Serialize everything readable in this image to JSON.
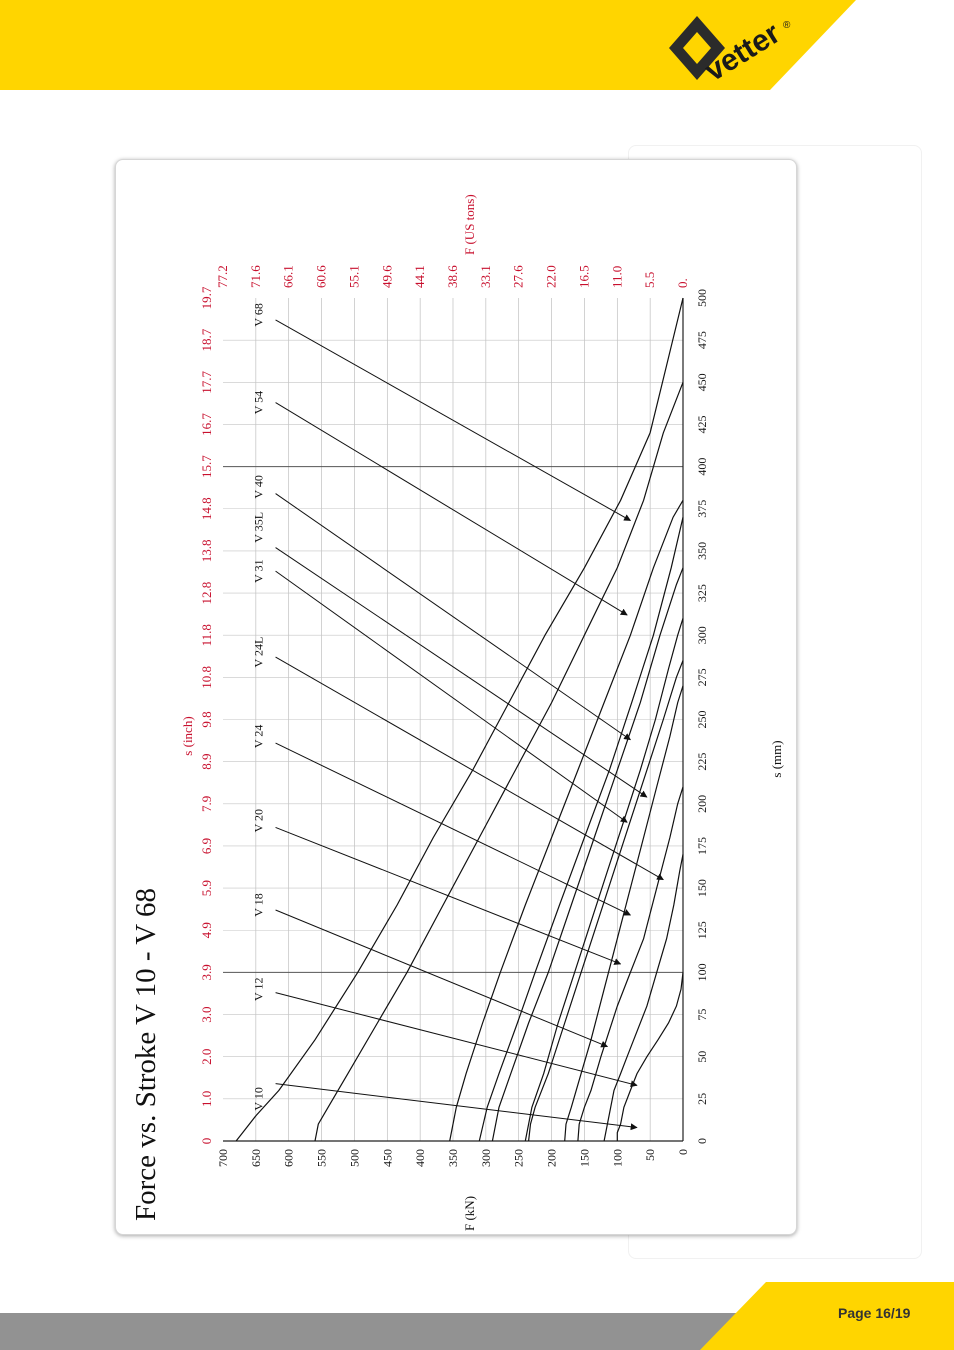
{
  "page": {
    "page_number": "Page 16/19",
    "brand": "vetter",
    "brand_mark": "®",
    "colors": {
      "brand_yellow": "#FFD500",
      "footer_gray": "#929292",
      "axis_red": "#C8102E",
      "ink": "#1a1a1a"
    }
  },
  "chart_data": {
    "type": "line",
    "title": "Force vs. Stroke V 10 - V 68",
    "xlabel": "s (mm)",
    "ylabel": "F (kN)",
    "x2label": "s (inch)",
    "y2label": "F (US tons)",
    "orientation": "rotated 90° counter-clockwise",
    "xlim": [
      0,
      500
    ],
    "ylim": [
      0,
      700
    ],
    "grid": true,
    "x_ticks": [
      "0",
      "25",
      "50",
      "75",
      "100",
      "125",
      "150",
      "175",
      "200",
      "225",
      "250",
      "275",
      "300",
      "325",
      "350",
      "375",
      "400",
      "425",
      "450",
      "475",
      "500"
    ],
    "y_ticks": [
      "0",
      "50",
      "100",
      "150",
      "200",
      "250",
      "300",
      "350",
      "400",
      "450",
      "500",
      "550",
      "600",
      "650",
      "700"
    ],
    "x2_ticks": [
      "0",
      "1.0",
      "2.0",
      "3.0",
      "3.9",
      "4.9",
      "5.9",
      "6.9",
      "7.9",
      "8.9",
      "9.8",
      "10.8",
      "11.8",
      "12.8",
      "13.8",
      "14.8",
      "15.7",
      "16.7",
      "17.7",
      "18.7",
      "19.7"
    ],
    "y2_ticks": [
      "0.",
      "5.5",
      "11.0",
      "16.5",
      "22.0",
      "27.6",
      "33.1",
      "38.6",
      "44.1",
      "49.6",
      "55.1",
      "60.6",
      "66.1",
      "71.6",
      "77.2"
    ],
    "series": [
      {
        "name": "V 10",
        "points": [
          [
            0,
            100
          ],
          [
            5,
            100
          ],
          [
            10,
            95
          ],
          [
            20,
            90
          ],
          [
            30,
            80
          ],
          [
            40,
            70
          ],
          [
            50,
            55
          ],
          [
            60,
            38
          ],
          [
            70,
            22
          ],
          [
            80,
            10
          ],
          [
            90,
            3
          ],
          [
            100,
            0
          ]
        ],
        "label_x": 25,
        "arrow_from": [
          34,
          620
        ],
        "arrow_to": [
          8,
          70
        ]
      },
      {
        "name": "V 12",
        "points": [
          [
            0,
            120
          ],
          [
            10,
            115
          ],
          [
            20,
            110
          ],
          [
            30,
            105
          ],
          [
            40,
            95
          ],
          [
            50,
            85
          ],
          [
            60,
            75
          ],
          [
            80,
            55
          ],
          [
            100,
            40
          ],
          [
            120,
            25
          ],
          [
            140,
            14
          ],
          [
            160,
            5
          ],
          [
            170,
            0
          ]
        ],
        "label_x": 90,
        "arrow_from": [
          88,
          620
        ],
        "arrow_to": [
          33,
          70
        ]
      },
      {
        "name": "V 18",
        "points": [
          [
            0,
            160
          ],
          [
            10,
            158
          ],
          [
            20,
            150
          ],
          [
            30,
            140
          ],
          [
            50,
            125
          ],
          [
            80,
            100
          ],
          [
            100,
            80
          ],
          [
            120,
            60
          ],
          [
            150,
            40
          ],
          [
            180,
            20
          ],
          [
            200,
            8
          ],
          [
            210,
            0
          ]
        ],
        "label_x": 140,
        "arrow_from": [
          137,
          620
        ],
        "arrow_to": [
          56,
          115
        ]
      },
      {
        "name": "V 20",
        "points": [
          [
            0,
            180
          ],
          [
            10,
            178
          ],
          [
            20,
            170
          ],
          [
            40,
            155
          ],
          [
            60,
            140
          ],
          [
            90,
            120
          ],
          [
            120,
            100
          ],
          [
            150,
            80
          ],
          [
            180,
            60
          ],
          [
            210,
            40
          ],
          [
            240,
            20
          ],
          [
            260,
            8
          ],
          [
            270,
            0
          ]
        ],
        "label_x": 190,
        "arrow_from": [
          186,
          620
        ],
        "arrow_to": [
          105,
          95
        ]
      },
      {
        "name": "V 24",
        "points": [
          [
            0,
            235
          ],
          [
            10,
            232
          ],
          [
            20,
            225
          ],
          [
            40,
            205
          ],
          [
            70,
            180
          ],
          [
            100,
            155
          ],
          [
            130,
            130
          ],
          [
            160,
            105
          ],
          [
            190,
            80
          ],
          [
            220,
            55
          ],
          [
            250,
            30
          ],
          [
            275,
            10
          ],
          [
            285,
            0
          ]
        ],
        "label_x": 240,
        "arrow_from": [
          236,
          620
        ],
        "arrow_to": [
          134,
          80
        ]
      },
      {
        "name": "V 24L",
        "points": [
          [
            0,
            240
          ],
          [
            20,
            230
          ],
          [
            40,
            212
          ],
          [
            70,
            190
          ],
          [
            100,
            165
          ],
          [
            130,
            140
          ],
          [
            160,
            115
          ],
          [
            190,
            90
          ],
          [
            220,
            65
          ],
          [
            250,
            42
          ],
          [
            280,
            22
          ],
          [
            300,
            8
          ],
          [
            310,
            0
          ]
        ],
        "label_x": 290,
        "arrow_from": [
          287,
          620
        ],
        "arrow_to": [
          155,
          30
        ]
      },
      {
        "name": "V 31",
        "points": [
          [
            0,
            290
          ],
          [
            20,
            280
          ],
          [
            40,
            262
          ],
          [
            70,
            235
          ],
          [
            100,
            205
          ],
          [
            140,
            170
          ],
          [
            180,
            135
          ],
          [
            220,
            100
          ],
          [
            260,
            65
          ],
          [
            300,
            35
          ],
          [
            330,
            10
          ],
          [
            340,
            0
          ]
        ],
        "label_x": 338,
        "arrow_from": [
          338,
          620
        ],
        "arrow_to": [
          189,
          85
        ]
      },
      {
        "name": "V 35L",
        "points": [
          [
            0,
            310
          ],
          [
            20,
            298
          ],
          [
            40,
            280
          ],
          [
            70,
            252
          ],
          [
            100,
            225
          ],
          [
            140,
            188
          ],
          [
            180,
            150
          ],
          [
            220,
            112
          ],
          [
            260,
            78
          ],
          [
            300,
            45
          ],
          [
            340,
            18
          ],
          [
            370,
            0
          ]
        ],
        "label_x": 364,
        "arrow_from": [
          352,
          620
        ],
        "arrow_to": [
          204,
          55
        ]
      },
      {
        "name": "V 40",
        "points": [
          [
            0,
            355
          ],
          [
            20,
            345
          ],
          [
            40,
            330
          ],
          [
            70,
            305
          ],
          [
            100,
            278
          ],
          [
            140,
            240
          ],
          [
            180,
            200
          ],
          [
            220,
            160
          ],
          [
            260,
            120
          ],
          [
            300,
            80
          ],
          [
            340,
            45
          ],
          [
            370,
            15
          ],
          [
            380,
            0
          ]
        ],
        "label_x": 388,
        "arrow_from": [
          384,
          620
        ],
        "arrow_to": [
          238,
          80
        ]
      },
      {
        "name": "V 54",
        "points": [
          [
            0,
            560
          ],
          [
            10,
            555
          ],
          [
            20,
            540
          ],
          [
            40,
            510
          ],
          [
            70,
            465
          ],
          [
            100,
            420
          ],
          [
            140,
            365
          ],
          [
            180,
            310
          ],
          [
            220,
            255
          ],
          [
            260,
            200
          ],
          [
            300,
            150
          ],
          [
            340,
            100
          ],
          [
            380,
            60
          ],
          [
            420,
            30
          ],
          [
            450,
            0
          ]
        ],
        "label_x": 438,
        "arrow_from": [
          438,
          620
        ],
        "arrow_to": [
          312,
          85
        ]
      },
      {
        "name": "V 68",
        "points": [
          [
            0,
            680
          ],
          [
            5,
            670
          ],
          [
            15,
            650
          ],
          [
            30,
            615
          ],
          [
            60,
            560
          ],
          [
            100,
            495
          ],
          [
            140,
            435
          ],
          [
            180,
            380
          ],
          [
            220,
            320
          ],
          [
            260,
            265
          ],
          [
            300,
            210
          ],
          [
            340,
            150
          ],
          [
            380,
            95
          ],
          [
            420,
            50
          ],
          [
            460,
            25
          ],
          [
            500,
            0
          ]
        ],
        "label_x": 490,
        "arrow_from": [
          487,
          620
        ],
        "arrow_to": [
          368,
          80
        ]
      }
    ]
  }
}
